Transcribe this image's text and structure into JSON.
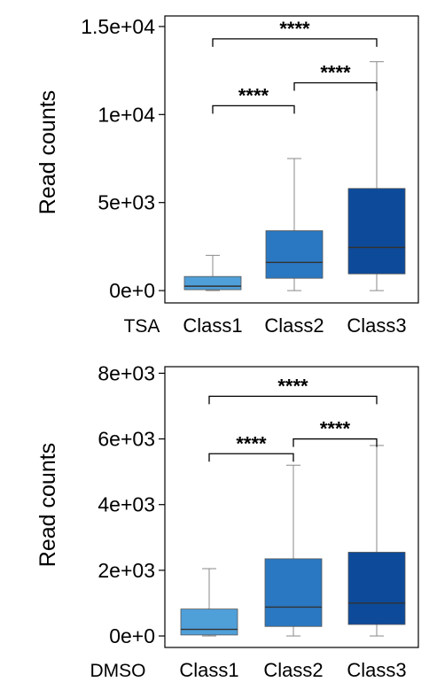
{
  "colors": {
    "class1": "#4f9fd9",
    "class2": "#2a78c1",
    "class3": "#0d4a9a",
    "median": "#333333",
    "whisker": "#888888",
    "frame": "#000000"
  },
  "chart_data": [
    {
      "type": "box",
      "group_label": "TSA",
      "ylabel": "Read counts",
      "categories": [
        "Class1",
        "Class2",
        "Class3"
      ],
      "yticks": [
        0,
        5000,
        10000,
        15000
      ],
      "ytick_labels": [
        "0e+0",
        "5e+03",
        "1e+04",
        "1.5e+04"
      ],
      "ylim": [
        -700,
        15600
      ],
      "boxes": [
        {
          "name": "Class1",
          "min": 0,
          "q1": 50,
          "median": 250,
          "q3": 800,
          "max": 2000
        },
        {
          "name": "Class2",
          "min": 0,
          "q1": 700,
          "median": 1600,
          "q3": 3400,
          "max": 7500
        },
        {
          "name": "Class3",
          "min": 0,
          "q1": 950,
          "median": 2450,
          "q3": 5800,
          "max": 13000
        }
      ],
      "significance": [
        {
          "from": "Class1",
          "to": "Class2",
          "y": 10500,
          "label": "****"
        },
        {
          "from": "Class2",
          "to": "Class3",
          "y": 11800,
          "label": "****"
        },
        {
          "from": "Class1",
          "to": "Class3",
          "y": 14300,
          "label": "****"
        }
      ]
    },
    {
      "type": "box",
      "group_label": "DMSO",
      "ylabel": "Read counts",
      "categories": [
        "Class1",
        "Class2",
        "Class3"
      ],
      "yticks": [
        0,
        2000,
        4000,
        6000,
        8000
      ],
      "ytick_labels": [
        "0e+0",
        "2e+03",
        "4e+03",
        "6e+03",
        "8e+03"
      ],
      "ylim": [
        -350,
        8200
      ],
      "boxes": [
        {
          "name": "Class1",
          "min": 0,
          "q1": 30,
          "median": 200,
          "q3": 820,
          "max": 2050
        },
        {
          "name": "Class2",
          "min": 0,
          "q1": 290,
          "median": 880,
          "q3": 2350,
          "max": 5200
        },
        {
          "name": "Class3",
          "min": 0,
          "q1": 350,
          "median": 1000,
          "q3": 2550,
          "max": 5800
        }
      ],
      "significance": [
        {
          "from": "Class1",
          "to": "Class2",
          "y": 5550,
          "label": "****"
        },
        {
          "from": "Class2",
          "to": "Class3",
          "y": 6000,
          "label": "****"
        },
        {
          "from": "Class1",
          "to": "Class3",
          "y": 7300,
          "label": "****"
        }
      ]
    }
  ]
}
